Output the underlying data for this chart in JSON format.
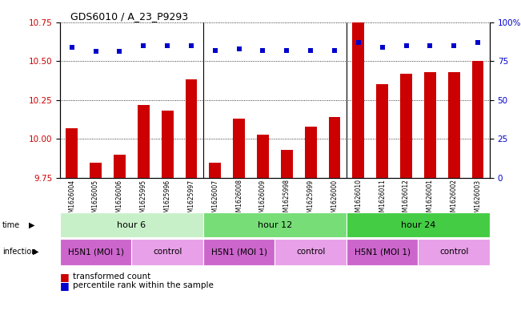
{
  "title": "GDS6010 / A_23_P9293",
  "samples": [
    "GSM1626004",
    "GSM1626005",
    "GSM1626006",
    "GSM1625995",
    "GSM1625996",
    "GSM1625997",
    "GSM1626007",
    "GSM1626008",
    "GSM1626009",
    "GSM1625998",
    "GSM1625999",
    "GSM1626000",
    "GSM1626010",
    "GSM1626011",
    "GSM1626012",
    "GSM1626001",
    "GSM1626002",
    "GSM1626003"
  ],
  "bar_values": [
    10.07,
    9.85,
    9.9,
    10.22,
    10.18,
    10.38,
    9.85,
    10.13,
    10.03,
    9.93,
    10.08,
    10.14,
    10.75,
    10.35,
    10.42,
    10.43,
    10.43,
    10.5
  ],
  "dot_values": [
    84,
    81,
    81,
    85,
    85,
    85,
    82,
    83,
    82,
    82,
    82,
    82,
    87,
    84,
    85,
    85,
    85,
    87
  ],
  "ylim_left": [
    9.75,
    10.75
  ],
  "ylim_right": [
    0,
    100
  ],
  "yticks_left": [
    9.75,
    10.0,
    10.25,
    10.5,
    10.75
  ],
  "yticks_right": [
    0,
    25,
    50,
    75,
    100
  ],
  "bar_color": "#cc0000",
  "dot_color": "#0000cc",
  "time_groups": [
    {
      "label": "hour 6",
      "start": 0,
      "end": 6,
      "color": "#c8f0c8"
    },
    {
      "label": "hour 12",
      "start": 6,
      "end": 12,
      "color": "#77dd77"
    },
    {
      "label": "hour 24",
      "start": 12,
      "end": 18,
      "color": "#44cc44"
    }
  ],
  "infection_groups": [
    {
      "label": "H5N1 (MOI 1)",
      "start": 0,
      "end": 3,
      "color": "#cc66cc"
    },
    {
      "label": "control",
      "start": 3,
      "end": 6,
      "color": "#e8a0e8"
    },
    {
      "label": "H5N1 (MOI 1)",
      "start": 6,
      "end": 9,
      "color": "#cc66cc"
    },
    {
      "label": "control",
      "start": 9,
      "end": 12,
      "color": "#e8a0e8"
    },
    {
      "label": "H5N1 (MOI 1)",
      "start": 12,
      "end": 15,
      "color": "#cc66cc"
    },
    {
      "label": "control",
      "start": 15,
      "end": 18,
      "color": "#e8a0e8"
    }
  ],
  "background_color": "#ffffff",
  "bar_width": 0.5
}
